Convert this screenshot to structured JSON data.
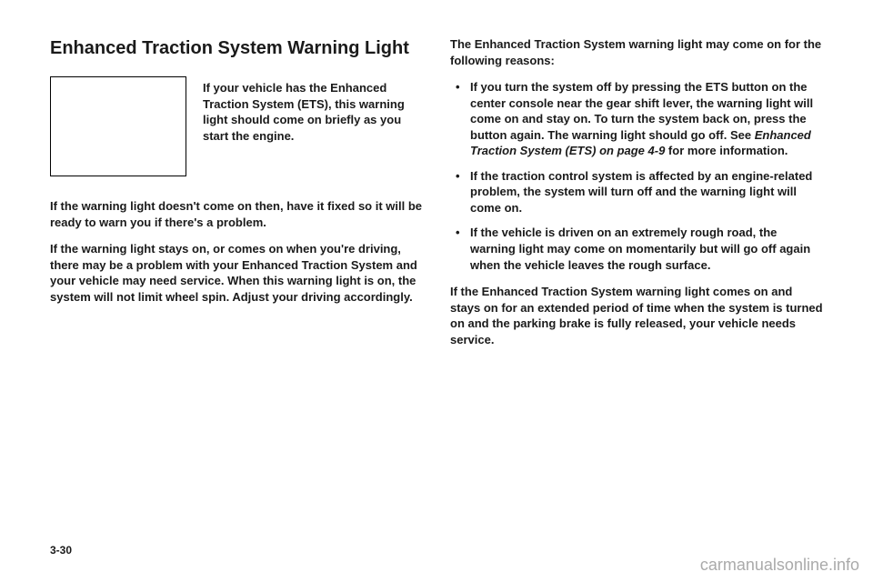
{
  "heading": "Enhanced Traction System Warning Light",
  "intro": "If your vehicle has the Enhanced Traction System (ETS), this warning light should come on briefly as you start the engine.",
  "para1": "If the warning light doesn't come on then, have it fixed so it will be ready to warn you if there's a problem.",
  "para2": "If the warning light stays on, or comes on when you're driving, there may be a problem with your Enhanced Traction System and your vehicle may need service. When this warning light is on, the system will not limit wheel spin. Adjust your driving accordingly.",
  "rightIntro": "The Enhanced Traction System warning light may come on for the following reasons:",
  "bullets": [
    {
      "pre": "If you turn the system off by pressing the ETS button on the center console near the gear shift lever, the warning light will come on and stay on. To turn the system back on, press the button again. The warning light should go off. See ",
      "italic": "Enhanced Traction System (ETS) on page 4-9",
      "post": " for more information."
    },
    {
      "pre": "If the traction control system is affected by an engine-related problem, the system will turn off and the warning light will come on.",
      "italic": "",
      "post": ""
    },
    {
      "pre": "If the vehicle is driven on an extremely rough road, the warning light may come on momentarily but will go off again when the vehicle leaves the rough surface.",
      "italic": "",
      "post": ""
    }
  ],
  "closing": "If the Enhanced Traction System warning light comes on and stays on for an extended period of time when the system is turned on and the parking brake is fully released, your vehicle needs service.",
  "pageNumber": "3-30",
  "watermark": "carmanualsonline.info"
}
